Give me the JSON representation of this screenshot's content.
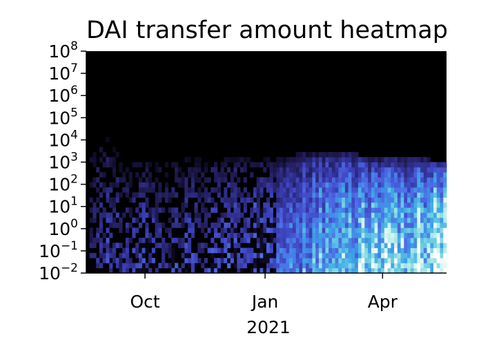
{
  "chart_data": {
    "type": "heatmap",
    "title": "DAI transfer amount heatmap",
    "xlabel": "",
    "ylabel": "",
    "x_scale": "date",
    "y_scale": "log",
    "x_range": [
      "2020-08-17",
      "2021-05-20"
    ],
    "ylim": [
      0.01,
      100000000
    ],
    "x_ticks": [
      {
        "date": "2020-10-01",
        "label": "Oct"
      },
      {
        "date": "2021-01-01",
        "label": "Jan"
      },
      {
        "date": "2021-04-01",
        "label": "Apr"
      }
    ],
    "x_offset_label": "2021",
    "y_ticks": [
      {
        "value": 100000000,
        "base": "10",
        "exp": "8"
      },
      {
        "value": 10000000,
        "base": "10",
        "exp": "7"
      },
      {
        "value": 1000000,
        "base": "10",
        "exp": "6"
      },
      {
        "value": 100000,
        "base": "10",
        "exp": "5"
      },
      {
        "value": 10000,
        "base": "10",
        "exp": "4"
      },
      {
        "value": 1000,
        "base": "10",
        "exp": "3"
      },
      {
        "value": 100,
        "base": "10",
        "exp": "2"
      },
      {
        "value": 10,
        "base": "10",
        "exp": "1"
      },
      {
        "value": 1,
        "base": "10",
        "exp": "0"
      },
      {
        "value": 0.1,
        "base": "10",
        "exp": "−1"
      },
      {
        "value": 0.01,
        "base": "10",
        "exp": "−2"
      }
    ],
    "colormap": [
      "#000000",
      "#211b55",
      "#3b3fb8",
      "#4e6ee8",
      "#3ba3e6",
      "#6fd0e2",
      "#c9f2ec",
      "#ffffff"
    ],
    "background_color": "#000000",
    "density_profile": [
      {
        "date": "2020-08-22",
        "level": 0.18,
        "top": 3000
      },
      {
        "date": "2020-09-01",
        "level": 0.25,
        "top": 10000
      },
      {
        "date": "2020-09-15",
        "level": 0.22,
        "top": 1000
      },
      {
        "date": "2020-10-01",
        "level": 0.26,
        "top": 800
      },
      {
        "date": "2020-10-15",
        "level": 0.25,
        "top": 800
      },
      {
        "date": "2020-11-01",
        "level": 0.27,
        "top": 1000
      },
      {
        "date": "2020-11-15",
        "level": 0.28,
        "top": 1000
      },
      {
        "date": "2020-12-01",
        "level": 0.3,
        "top": 1000
      },
      {
        "date": "2020-12-15",
        "level": 0.33,
        "top": 1500
      },
      {
        "date": "2021-01-01",
        "level": 0.36,
        "top": 1000
      },
      {
        "date": "2021-01-15",
        "level": 0.42,
        "top": 1000
      },
      {
        "date": "2021-02-01",
        "level": 0.55,
        "top": 2000
      },
      {
        "date": "2021-02-15",
        "level": 0.62,
        "top": 2000
      },
      {
        "date": "2021-03-01",
        "level": 0.66,
        "top": 2000
      },
      {
        "date": "2021-03-15",
        "level": 0.7,
        "top": 1500
      },
      {
        "date": "2021-04-01",
        "level": 0.75,
        "top": 1000
      },
      {
        "date": "2021-04-15",
        "level": 0.82,
        "top": 1000
      },
      {
        "date": "2021-05-01",
        "level": 0.9,
        "top": 1000
      },
      {
        "date": "2021-05-20",
        "level": 0.95,
        "top": 800
      }
    ]
  }
}
